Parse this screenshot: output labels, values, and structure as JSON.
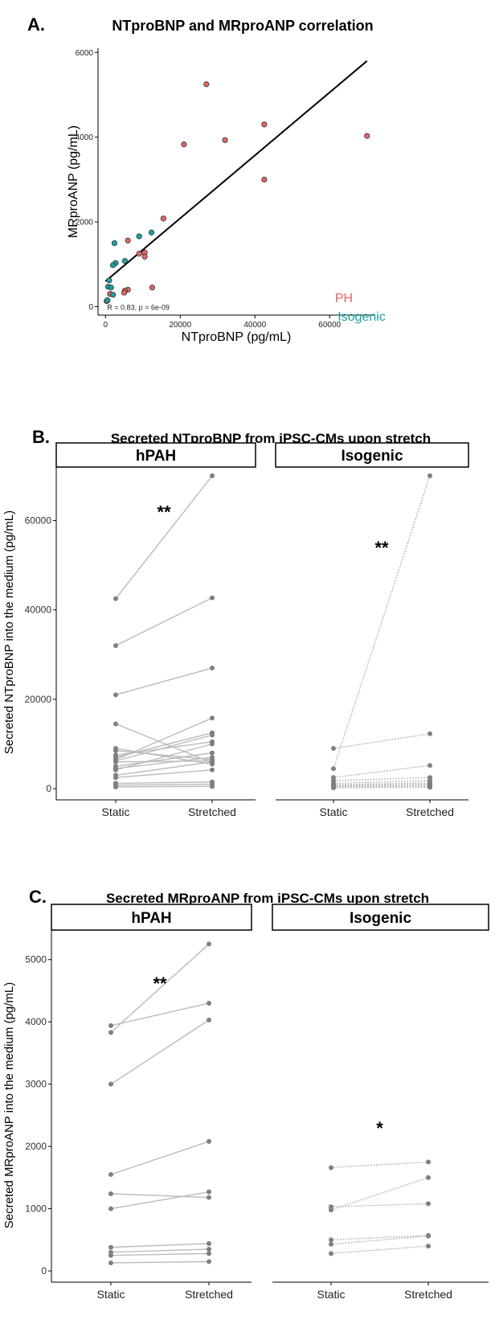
{
  "panels": {
    "a": {
      "letter": "A.",
      "title": "NTproBNP and MRproANP correlation"
    },
    "b": {
      "letter": "B.",
      "title": "Secreted NTproBNP from iPSC-CMs upon stretch"
    },
    "c": {
      "letter": "C.",
      "title": "Secreted MRproANP from iPSC-CMs upon stretch"
    }
  },
  "colors": {
    "ph": "#e06666",
    "isogenic": "#1aa3a3",
    "point_gray": "#7f7f7f",
    "line_gray": "#bbbbbb"
  },
  "chart_data": [
    {
      "type": "scatter",
      "title": "NTproBNP and MRproANP correlation",
      "xlabel": "NTproBNP (pg/mL)",
      "ylabel": "MRproANP (pg/mL)",
      "xlim": [
        -2000,
        72000
      ],
      "ylim": [
        -200,
        6100
      ],
      "xticks": [
        0,
        20000,
        40000,
        60000
      ],
      "xtick_labels": [
        "0",
        "20000",
        "40000",
        "60000"
      ],
      "yticks": [
        0,
        2000,
        4000,
        6000
      ],
      "ytick_labels": [
        "0",
        "2000",
        "4000",
        "6000"
      ],
      "annotation": "R = 0.83, p = 6e-09",
      "fit_line": {
        "x": [
          0,
          70000
        ],
        "y": [
          600,
          5800
        ]
      },
      "legend": [
        "PH",
        "Isogenic"
      ],
      "series": [
        {
          "name": "PH",
          "points": [
            [
              27000,
              5250
            ],
            [
              42500,
              4300
            ],
            [
              70000,
              4030
            ],
            [
              32000,
              3930
            ],
            [
              21000,
              3830
            ],
            [
              42500,
              3000
            ],
            [
              15500,
              2080
            ],
            [
              10500,
              1280
            ],
            [
              10500,
              1180
            ],
            [
              9000,
              1250
            ],
            [
              6000,
              1560
            ],
            [
              12500,
              450
            ],
            [
              6000,
              400
            ],
            [
              5200,
              380
            ],
            [
              5000,
              330
            ],
            [
              1200,
              300
            ],
            [
              500,
              150
            ],
            [
              300,
              130
            ]
          ]
        },
        {
          "name": "Isogenic",
          "points": [
            [
              12300,
              1750
            ],
            [
              9000,
              1660
            ],
            [
              2400,
              1500
            ],
            [
              5200,
              1080
            ],
            [
              2700,
              1030
            ],
            [
              2000,
              980
            ],
            [
              1000,
              620
            ],
            [
              700,
              470
            ],
            [
              1500,
              450
            ],
            [
              2000,
              280
            ],
            [
              500,
              150
            ]
          ]
        }
      ]
    },
    {
      "type": "line",
      "title": "Secreted NTproBNP from iPSC-CMs upon stretch",
      "ylabel": "Secreted NTproBNP into the medium (pg/mL)",
      "categories": [
        "Static",
        "Stretched"
      ],
      "ylim": [
        -2500,
        72500
      ],
      "yticks": [
        0,
        20000,
        40000,
        60000
      ],
      "ytick_labels": [
        "0",
        "20000",
        "40000",
        "60000"
      ],
      "facets": [
        {
          "name": "hPAH",
          "significance": "**",
          "sig_pos": [
            0.5,
            62000
          ],
          "pairs": [
            [
              42500,
              70000
            ],
            [
              32000,
              42700
            ],
            [
              21000,
              27000
            ],
            [
              14500,
              5800
            ],
            [
              9000,
              5500
            ],
            [
              8500,
              6500
            ],
            [
              7500,
              10500
            ],
            [
              7000,
              12500
            ],
            [
              6500,
              15800
            ],
            [
              6200,
              12000
            ],
            [
              6000,
              6200
            ],
            [
              5000,
              8000
            ],
            [
              4500,
              7000
            ],
            [
              4200,
              10000
            ],
            [
              3000,
              6000
            ],
            [
              2500,
              4200
            ],
            [
              1200,
              1500
            ],
            [
              800,
              1000
            ],
            [
              400,
              500
            ]
          ]
        },
        {
          "name": "Isogenic",
          "significance": "**",
          "sig_pos": [
            0.5,
            54000
          ],
          "pairs": [
            [
              4500,
              70000
            ],
            [
              9000,
              12300
            ],
            [
              2500,
              5200
            ],
            [
              1800,
              2500
            ],
            [
              1200,
              1800
            ],
            [
              900,
              1300
            ],
            [
              700,
              1000
            ],
            [
              500,
              700
            ],
            [
              300,
              400
            ],
            [
              200,
              300
            ]
          ]
        }
      ]
    },
    {
      "type": "line",
      "title": "Secreted MRproANP from iPSC-CMs upon stretch",
      "ylabel": "Secreted MRproANP into the medium (pg/mL)",
      "categories": [
        "Static",
        "Stretched"
      ],
      "ylim": [
        -180,
        5500
      ],
      "yticks": [
        0,
        1000,
        2000,
        3000,
        4000,
        5000
      ],
      "ytick_labels": [
        "0",
        "1000",
        "2000",
        "3000",
        "4000",
        "5000"
      ],
      "facets": [
        {
          "name": "hPAH",
          "significance": "**",
          "sig_pos": [
            0.5,
            4620
          ],
          "pairs": [
            [
              3830,
              5250
            ],
            [
              3940,
              4300
            ],
            [
              3000,
              4030
            ],
            [
              1550,
              2080
            ],
            [
              1240,
              1180
            ],
            [
              1000,
              1270
            ],
            [
              380,
              440
            ],
            [
              300,
              350
            ],
            [
              250,
              280
            ],
            [
              130,
              150
            ]
          ]
        },
        {
          "name": "Isogenic",
          "significance": "*",
          "sig_pos": [
            0.5,
            2300
          ],
          "pairs": [
            [
              1660,
              1750
            ],
            [
              1030,
              1080
            ],
            [
              980,
              1500
            ],
            [
              500,
              570
            ],
            [
              430,
              560
            ],
            [
              280,
              400
            ]
          ]
        }
      ]
    }
  ]
}
